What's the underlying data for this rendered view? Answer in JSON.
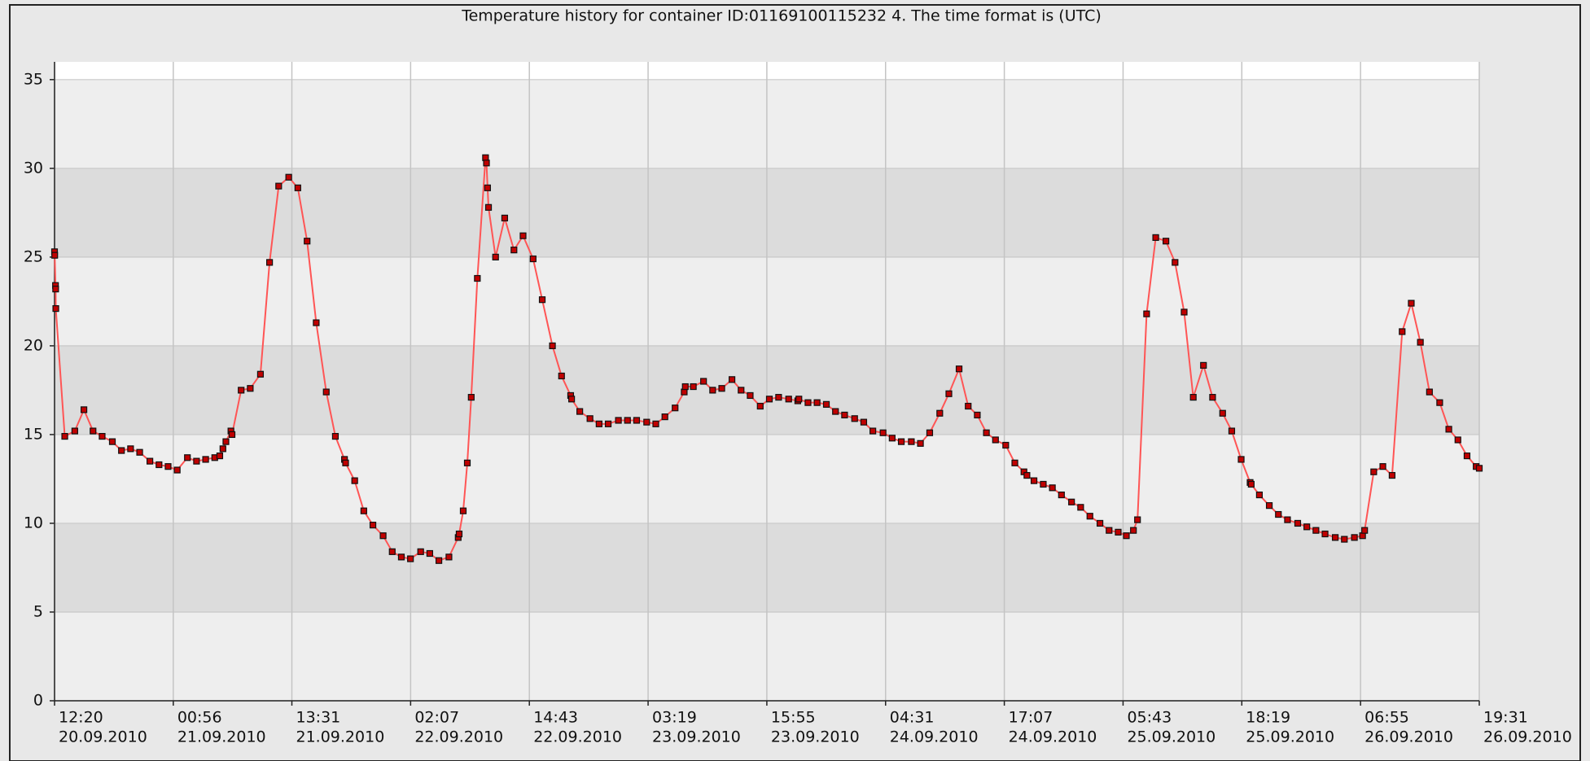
{
  "chart_data": {
    "type": "line",
    "title": "Temperature history for container ID:01169100115232 4. The time format is (UTC)",
    "color": "#ff5555",
    "marker_color": "#c00000",
    "grid": true,
    "ylim": [
      0,
      36
    ],
    "yticks": [
      0,
      5,
      10,
      15,
      20,
      25,
      30,
      35
    ],
    "xlim": [
      "2010-09-20T12:20",
      "2010-09-26T19:31"
    ],
    "xticks": [
      {
        "value": "2010-09-20T12:20",
        "label": [
          "12:20",
          "20.09.2010"
        ]
      },
      {
        "value": "2010-09-21T00:56",
        "label": [
          "00:56",
          "21.09.2010"
        ]
      },
      {
        "value": "2010-09-21T13:31",
        "label": [
          "13:31",
          "21.09.2010"
        ]
      },
      {
        "value": "2010-09-22T02:07",
        "label": [
          "02:07",
          "22.09.2010"
        ]
      },
      {
        "value": "2010-09-22T14:43",
        "label": [
          "14:43",
          "22.09.2010"
        ]
      },
      {
        "value": "2010-09-23T03:19",
        "label": [
          "03:19",
          "23.09.2010"
        ]
      },
      {
        "value": "2010-09-23T15:55",
        "label": [
          "15:55",
          "23.09.2010"
        ]
      },
      {
        "value": "2010-09-24T04:31",
        "label": [
          "04:31",
          "24.09.2010"
        ]
      },
      {
        "value": "2010-09-24T17:07",
        "label": [
          "17:07",
          "24.09.2010"
        ]
      },
      {
        "value": "2010-09-25T05:43",
        "label": [
          "05:43",
          "25.09.2010"
        ]
      },
      {
        "value": "2010-09-25T18:19",
        "label": [
          "18:19",
          "25.09.2010"
        ]
      },
      {
        "value": "2010-09-26T06:55",
        "label": [
          "06:55",
          "26.09.2010"
        ]
      },
      {
        "value": "2010-09-26T19:31",
        "label": [
          "19:31",
          "26.09.2010"
        ]
      }
    ],
    "x": [
      "2010-09-20T12:20",
      "2010-09-20T12:21",
      "2010-09-20T12:26",
      "2010-09-20T12:27",
      "2010-09-20T12:28",
      "2010-09-20T13:25",
      "2010-09-20T14:29",
      "2010-09-20T15:27",
      "2010-09-20T16:25",
      "2010-09-20T17:23",
      "2010-09-20T18:28",
      "2010-09-20T19:26",
      "2010-09-20T20:24",
      "2010-09-20T21:22",
      "2010-09-20T22:27",
      "2010-09-20T23:25",
      "2010-09-21T00:23",
      "2010-09-21T01:21",
      "2010-09-21T02:26",
      "2010-09-21T03:24",
      "2010-09-21T04:22",
      "2010-09-21T05:20",
      "2010-09-21T05:52",
      "2010-09-21T06:12",
      "2010-09-21T06:31",
      "2010-09-21T07:03",
      "2010-09-21T07:10",
      "2010-09-21T08:08",
      "2010-09-21T09:06",
      "2010-09-21T10:11",
      "2010-09-21T11:09",
      "2010-09-21T12:07",
      "2010-09-21T13:11",
      "2010-09-21T14:09",
      "2010-09-21T15:08",
      "2010-09-21T16:06",
      "2010-09-21T17:10",
      "2010-09-21T18:08",
      "2010-09-21T19:06",
      "2010-09-21T19:13",
      "2010-09-21T20:11",
      "2010-09-21T21:09",
      "2010-09-21T22:07",
      "2010-09-21T23:12",
      "2010-09-22T00:10",
      "2010-09-22T01:08",
      "2010-09-22T02:06",
      "2010-09-22T03:11",
      "2010-09-22T04:09",
      "2010-09-22T05:07",
      "2010-09-22T06:11",
      "2010-09-22T07:10",
      "2010-09-22T07:16",
      "2010-09-22T07:42",
      "2010-09-22T08:08",
      "2010-09-22T08:33",
      "2010-09-22T09:12",
      "2010-09-22T10:04",
      "2010-09-22T10:10",
      "2010-09-22T10:17",
      "2010-09-22T10:23",
      "2010-09-22T11:08",
      "2010-09-22T12:06",
      "2010-09-22T13:05",
      "2010-09-22T14:03",
      "2010-09-22T15:07",
      "2010-09-22T16:05",
      "2010-09-22T17:10",
      "2010-09-22T18:08",
      "2010-09-22T19:06",
      "2010-09-22T19:12",
      "2010-09-22T20:04",
      "2010-09-22T21:09",
      "2010-09-22T22:07",
      "2010-09-22T23:05",
      "2010-09-23T00:10",
      "2010-09-23T01:08",
      "2010-09-23T02:06",
      "2010-09-23T03:10",
      "2010-09-23T04:08",
      "2010-09-23T05:06",
      "2010-09-23T06:11",
      "2010-09-23T07:09",
      "2010-09-23T07:16",
      "2010-09-23T08:07",
      "2010-09-23T09:12",
      "2010-09-23T10:10",
      "2010-09-23T11:08",
      "2010-09-23T12:13",
      "2010-09-23T13:11",
      "2010-09-23T14:09",
      "2010-09-23T15:13",
      "2010-09-23T16:11",
      "2010-09-23T17:10",
      "2010-09-23T18:14",
      "2010-09-23T19:12",
      "2010-09-23T19:19",
      "2010-09-23T20:17",
      "2010-09-23T21:15",
      "2010-09-23T22:14",
      "2010-09-23T23:12",
      "2010-09-24T00:10",
      "2010-09-24T01:14",
      "2010-09-24T02:12",
      "2010-09-24T03:10",
      "2010-09-24T04:15",
      "2010-09-24T05:13",
      "2010-09-24T06:11",
      "2010-09-24T07:15",
      "2010-09-24T08:13",
      "2010-09-24T09:12",
      "2010-09-24T10:16",
      "2010-09-24T11:14",
      "2010-09-24T12:19",
      "2010-09-24T13:17",
      "2010-09-24T14:15",
      "2010-09-24T15:13",
      "2010-09-24T16:11",
      "2010-09-24T17:16",
      "2010-09-24T18:14",
      "2010-09-24T19:12",
      "2010-09-24T19:31",
      "2010-09-24T20:16",
      "2010-09-24T21:15",
      "2010-09-24T22:13",
      "2010-09-24T23:11",
      "2010-09-25T00:15",
      "2010-09-25T01:13",
      "2010-09-25T02:12",
      "2010-09-25T03:16",
      "2010-09-25T04:14",
      "2010-09-25T05:12",
      "2010-09-25T06:04",
      "2010-09-25T06:49",
      "2010-09-25T07:15",
      "2010-09-25T08:13",
      "2010-09-25T09:11",
      "2010-09-25T10:16",
      "2010-09-25T11:14",
      "2010-09-25T12:12",
      "2010-09-25T13:10",
      "2010-09-25T14:15",
      "2010-09-25T15:13",
      "2010-09-25T16:17",
      "2010-09-25T17:15",
      "2010-09-25T18:15",
      "2010-09-25T19:12",
      "2010-09-25T19:19",
      "2010-09-25T20:11",
      "2010-09-25T21:14",
      "2010-09-25T22:12",
      "2010-09-25T23:10",
      "2010-09-26T00:15",
      "2010-09-26T01:13",
      "2010-09-26T02:11",
      "2010-09-26T03:09",
      "2010-09-26T04:14",
      "2010-09-26T05:12",
      "2010-09-26T06:16",
      "2010-09-26T07:08",
      "2010-09-26T07:21",
      "2010-09-26T08:19",
      "2010-09-26T09:17",
      "2010-09-26T10:16",
      "2010-09-26T11:20",
      "2010-09-26T12:18",
      "2010-09-26T13:16",
      "2010-09-26T14:14",
      "2010-09-26T15:19",
      "2010-09-26T16:17",
      "2010-09-26T17:15",
      "2010-09-26T18:13",
      "2010-09-26T19:11",
      "2010-09-26T19:31"
    ],
    "values": [
      25.3,
      25.1,
      23.4,
      23.2,
      22.1,
      14.9,
      15.2,
      16.4,
      15.2,
      14.9,
      14.6,
      14.1,
      14.2,
      14.0,
      13.5,
      13.3,
      13.2,
      13.0,
      13.7,
      13.5,
      13.6,
      13.7,
      13.8,
      14.2,
      14.6,
      15.2,
      15.0,
      17.5,
      17.6,
      18.4,
      24.7,
      29.0,
      29.5,
      28.9,
      25.9,
      21.3,
      17.4,
      14.9,
      13.6,
      13.4,
      12.4,
      10.7,
      9.9,
      9.3,
      8.4,
      8.1,
      8.0,
      8.4,
      8.3,
      7.9,
      8.1,
      9.2,
      9.4,
      10.7,
      13.4,
      17.1,
      23.8,
      30.6,
      30.3,
      28.9,
      27.8,
      25.0,
      27.2,
      25.4,
      26.2,
      24.9,
      22.6,
      20.0,
      18.3,
      17.2,
      17.0,
      16.3,
      15.9,
      15.6,
      15.6,
      15.8,
      15.8,
      15.8,
      15.7,
      15.6,
      16.0,
      16.5,
      17.4,
      17.7,
      17.7,
      18.0,
      17.5,
      17.6,
      18.1,
      17.5,
      17.2,
      16.6,
      17.0,
      17.1,
      17.0,
      16.9,
      17.0,
      16.8,
      16.8,
      16.7,
      16.3,
      16.1,
      15.9,
      15.7,
      15.2,
      15.1,
      14.8,
      14.6,
      14.6,
      14.5,
      15.1,
      16.2,
      17.3,
      18.7,
      16.6,
      16.1,
      15.1,
      14.7,
      14.4,
      13.4,
      12.9,
      12.7,
      12.4,
      12.2,
      12.0,
      11.6,
      11.2,
      10.9,
      10.4,
      10.0,
      9.6,
      9.5,
      9.3,
      9.6,
      10.2,
      21.8,
      26.1,
      25.9,
      24.7,
      21.9,
      17.1,
      18.9,
      17.1,
      16.2,
      15.2,
      13.6,
      12.3,
      12.2,
      11.6,
      11.0,
      10.5,
      10.2,
      10.0,
      9.8,
      9.6,
      9.4,
      9.2,
      9.1,
      9.2,
      9.3,
      9.6,
      12.9,
      13.2,
      12.7,
      20.8,
      22.4,
      20.2,
      17.4,
      16.8,
      15.3,
      14.7,
      13.8,
      13.2,
      13.1
    ]
  }
}
